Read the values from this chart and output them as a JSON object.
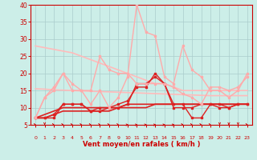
{
  "x": [
    0,
    1,
    2,
    3,
    4,
    5,
    6,
    7,
    8,
    9,
    10,
    11,
    12,
    13,
    14,
    15,
    16,
    17,
    18,
    19,
    20,
    21,
    22,
    23
  ],
  "series": [
    {
      "color": "#dd2222",
      "lw": 1.0,
      "marker": "s",
      "ms": 2.0,
      "values": [
        7,
        7,
        7,
        11,
        11,
        11,
        9,
        10,
        10,
        10,
        11,
        17,
        17,
        19,
        17,
        10,
        10,
        10,
        11,
        11,
        11,
        10,
        11,
        11
      ]
    },
    {
      "color": "#dd2222",
      "lw": 1.0,
      "marker": "s",
      "ms": 2.0,
      "values": [
        7,
        7,
        8,
        11,
        11,
        11,
        9,
        9,
        10,
        11,
        12,
        16,
        16,
        20,
        17,
        11,
        11,
        7,
        7,
        11,
        10,
        10,
        11,
        11
      ]
    },
    {
      "color": "#dd2222",
      "lw": 1.2,
      "marker": null,
      "ms": 0,
      "values": [
        7,
        7,
        8,
        9,
        9,
        9,
        9,
        9,
        9,
        10,
        10,
        10,
        10,
        11,
        11,
        11,
        11,
        11,
        11,
        11,
        11,
        11,
        11,
        11
      ]
    },
    {
      "color": "#dd2222",
      "lw": 1.2,
      "marker": null,
      "ms": 0,
      "values": [
        7,
        8,
        9,
        10,
        10,
        10,
        10,
        10,
        10,
        10,
        11,
        11,
        11,
        11,
        11,
        11,
        11,
        11,
        11,
        11,
        11,
        11,
        11,
        11
      ]
    },
    {
      "color": "#ffaaaa",
      "lw": 1.0,
      "marker": "s",
      "ms": 2.0,
      "values": [
        7,
        13,
        16,
        20,
        17,
        15,
        11,
        15,
        10,
        13,
        19,
        40,
        32,
        31,
        19,
        17,
        28,
        21,
        19,
        15,
        15,
        13,
        15,
        20
      ]
    },
    {
      "color": "#ffaaaa",
      "lw": 1.0,
      "marker": "s",
      "ms": 2.0,
      "values": [
        7,
        13,
        15,
        20,
        15,
        15,
        15,
        25,
        21,
        20,
        20,
        17,
        17,
        17,
        17,
        16,
        14,
        13,
        11,
        16,
        16,
        15,
        16,
        19
      ]
    },
    {
      "color": "#ffbbbb",
      "lw": 1.2,
      "marker": null,
      "ms": 0,
      "values": [
        15.5,
        15.4,
        15.2,
        15.1,
        15.0,
        14.9,
        14.8,
        14.7,
        14.6,
        14.5,
        14.4,
        14.3,
        14.2,
        14.1,
        14.0,
        13.9,
        13.8,
        13.7,
        13.6,
        13.5,
        13.5,
        13.5,
        13.5,
        13.5
      ]
    },
    {
      "color": "#ffbbbb",
      "lw": 1.2,
      "marker": null,
      "ms": 0,
      "values": [
        28,
        27.5,
        27,
        26.5,
        26,
        25,
        24,
        23,
        22,
        21,
        20,
        19,
        18,
        17,
        17,
        16,
        15,
        15,
        15,
        15,
        15,
        15,
        15,
        15
      ]
    }
  ],
  "arrow_directions": [
    45,
    0,
    45,
    45,
    45,
    45,
    45,
    45,
    45,
    45,
    90,
    90,
    90,
    90,
    90,
    90,
    45,
    45,
    45,
    45,
    0,
    0,
    0,
    45
  ],
  "xlabel": "Vent moyen/en rafales ( km/h )",
  "xlim": [
    -0.5,
    23.5
  ],
  "ylim": [
    5,
    40
  ],
  "yticks": [
    5,
    10,
    15,
    20,
    25,
    30,
    35,
    40
  ],
  "bg_color": "#cceee8",
  "grid_color": "#aacccc",
  "text_color": "#cc0000",
  "axis_color": "#cc0000"
}
